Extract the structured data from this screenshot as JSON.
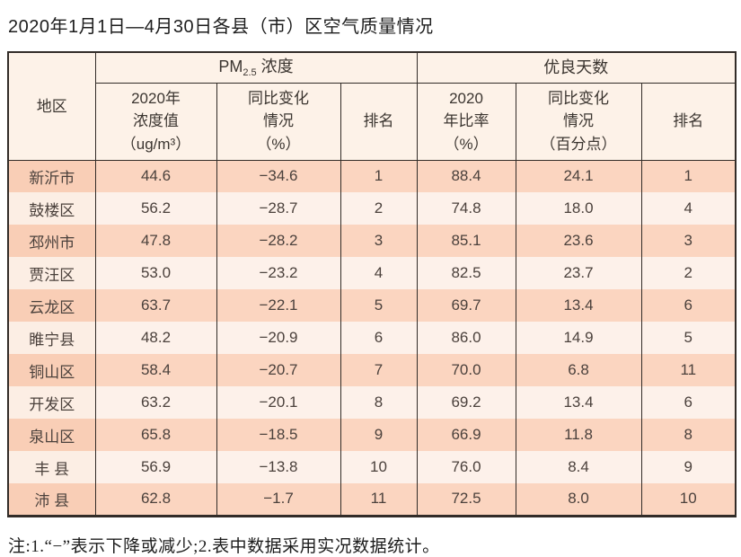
{
  "title": "2020年1月1日—4月30日各县（市）区空气质量情况",
  "note": "注:1.“−”表示下降或减少;2.表中数据采用实况数据统计。",
  "colors": {
    "row_odd": "#fbd5c0",
    "row_even": "#fdf1ea",
    "region_odd": "#f9ceb6",
    "header_bg": "#fdf2e8",
    "border": "#322c28"
  },
  "table": {
    "header": {
      "region": "地区",
      "pm_group": {
        "prefix": "PM",
        "sub": "2.5",
        "suffix": "浓度"
      },
      "good_group": "优良天数",
      "pm_value": "2020年\n浓度值\n（ug/m³）",
      "pm_change": "同比变化\n情况\n（%）",
      "pm_rank": "排名",
      "good_rate": "2020\n年比率\n（%）",
      "good_change": "同比变化\n情况\n（百分点）",
      "good_rank": "排名"
    },
    "rows": [
      {
        "region": "新沂市",
        "pm_value": "44.6",
        "pm_change": "−34.6",
        "pm_rank": "1",
        "good_rate": "88.4",
        "good_change": "24.1",
        "good_rank": "1"
      },
      {
        "region": "鼓楼区",
        "pm_value": "56.2",
        "pm_change": "−28.7",
        "pm_rank": "2",
        "good_rate": "74.8",
        "good_change": "18.0",
        "good_rank": "4"
      },
      {
        "region": "邳州市",
        "pm_value": "47.8",
        "pm_change": "−28.2",
        "pm_rank": "3",
        "good_rate": "85.1",
        "good_change": "23.6",
        "good_rank": "3"
      },
      {
        "region": "贾汪区",
        "pm_value": "53.0",
        "pm_change": "−23.2",
        "pm_rank": "4",
        "good_rate": "82.5",
        "good_change": "23.7",
        "good_rank": "2"
      },
      {
        "region": "云龙区",
        "pm_value": "63.7",
        "pm_change": "−22.1",
        "pm_rank": "5",
        "good_rate": "69.7",
        "good_change": "13.4",
        "good_rank": "6"
      },
      {
        "region": "睢宁县",
        "pm_value": "48.2",
        "pm_change": "−20.9",
        "pm_rank": "6",
        "good_rate": "86.0",
        "good_change": "14.9",
        "good_rank": "5"
      },
      {
        "region": "铜山区",
        "pm_value": "58.4",
        "pm_change": "−20.7",
        "pm_rank": "7",
        "good_rate": "70.0",
        "good_change": "6.8",
        "good_rank": "11"
      },
      {
        "region": "开发区",
        "pm_value": "63.2",
        "pm_change": "−20.1",
        "pm_rank": "8",
        "good_rate": "69.2",
        "good_change": "13.4",
        "good_rank": "6"
      },
      {
        "region": "泉山区",
        "pm_value": "65.8",
        "pm_change": "−18.5",
        "pm_rank": "9",
        "good_rate": "66.9",
        "good_change": "11.8",
        "good_rank": "8"
      },
      {
        "region": "丰 县",
        "pm_value": "56.9",
        "pm_change": "−13.8",
        "pm_rank": "10",
        "good_rate": "76.0",
        "good_change": "8.4",
        "good_rank": "9"
      },
      {
        "region": "沛 县",
        "pm_value": "62.8",
        "pm_change": "−1.7",
        "pm_rank": "11",
        "good_rate": "72.5",
        "good_change": "8.0",
        "good_rank": "10"
      }
    ]
  }
}
